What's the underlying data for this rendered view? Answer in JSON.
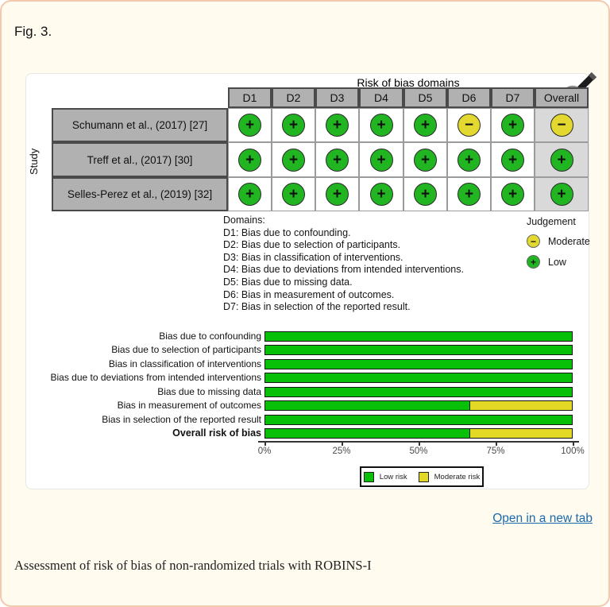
{
  "page": {
    "figure_label": "Fig. 3.",
    "open_in_new_tab": "Open in a new tab",
    "caption": "Assessment of risk of bias of non-randomized trials with ROBINS-I"
  },
  "traffic_light": {
    "title": "Risk of bias domains",
    "study_axis_label": "Study",
    "columns": [
      "D1",
      "D2",
      "D3",
      "D4",
      "D5",
      "D6",
      "D7",
      "Overall"
    ],
    "symbols": {
      "low": "+",
      "moderate": "−"
    },
    "rows": [
      {
        "study": "Schumann et al., (2017) [27]",
        "judgements": [
          "low",
          "low",
          "low",
          "low",
          "low",
          "moderate",
          "low",
          "moderate"
        ]
      },
      {
        "study": "Treff et al., (2017) [30]",
        "judgements": [
          "low",
          "low",
          "low",
          "low",
          "low",
          "low",
          "low",
          "low"
        ]
      },
      {
        "study": "Selles-Perez et al., (2019) [32]",
        "judgements": [
          "low",
          "low",
          "low",
          "low",
          "low",
          "low",
          "low",
          "low"
        ]
      }
    ]
  },
  "domains_legend": {
    "heading": "Domains:",
    "items": [
      "D1: Bias due to confounding.",
      "D2: Bias due to selection of participants.",
      "D3: Bias in classification of interventions.",
      "D4: Bias due to deviations from intended interventions.",
      "D5: Bias due to missing data.",
      "D6: Bias in measurement of outcomes.",
      "D7: Bias in selection of the reported result."
    ]
  },
  "judgement_legend": {
    "heading": "Judgement",
    "items": [
      {
        "level": "moderate",
        "symbol": "−",
        "label": "Moderate"
      },
      {
        "level": "low",
        "symbol": "+",
        "label": "Low"
      }
    ]
  },
  "chart_data": {
    "type": "bar",
    "orientation": "horizontal",
    "stacked": true,
    "categories": [
      "Bias due to confounding",
      "Bias due to selection of participants",
      "Bias in classification of interventions",
      "Bias due to deviations from intended interventions",
      "Bias due to missing data",
      "Bias in measurement of outcomes",
      "Bias in selection of the reported result",
      "Overall risk of bias"
    ],
    "bold_category": "Overall risk of bias",
    "series": [
      {
        "name": "Low risk",
        "values": [
          100,
          100,
          100,
          100,
          100,
          66.7,
          100,
          66.7
        ]
      },
      {
        "name": "Moderate risk",
        "values": [
          0,
          0,
          0,
          0,
          0,
          33.3,
          0,
          33.3
        ]
      }
    ],
    "x_ticks": [
      "0%",
      "25%",
      "50%",
      "75%",
      "100%"
    ],
    "xlim": [
      0,
      100
    ],
    "legend_position": "bottom-center",
    "grid": false
  },
  "colors": {
    "low": "#21b521",
    "moderate": "#e3d830",
    "bar_low": "#09c009",
    "bar_moderate": "#e2d926",
    "link": "#1b6aad"
  }
}
